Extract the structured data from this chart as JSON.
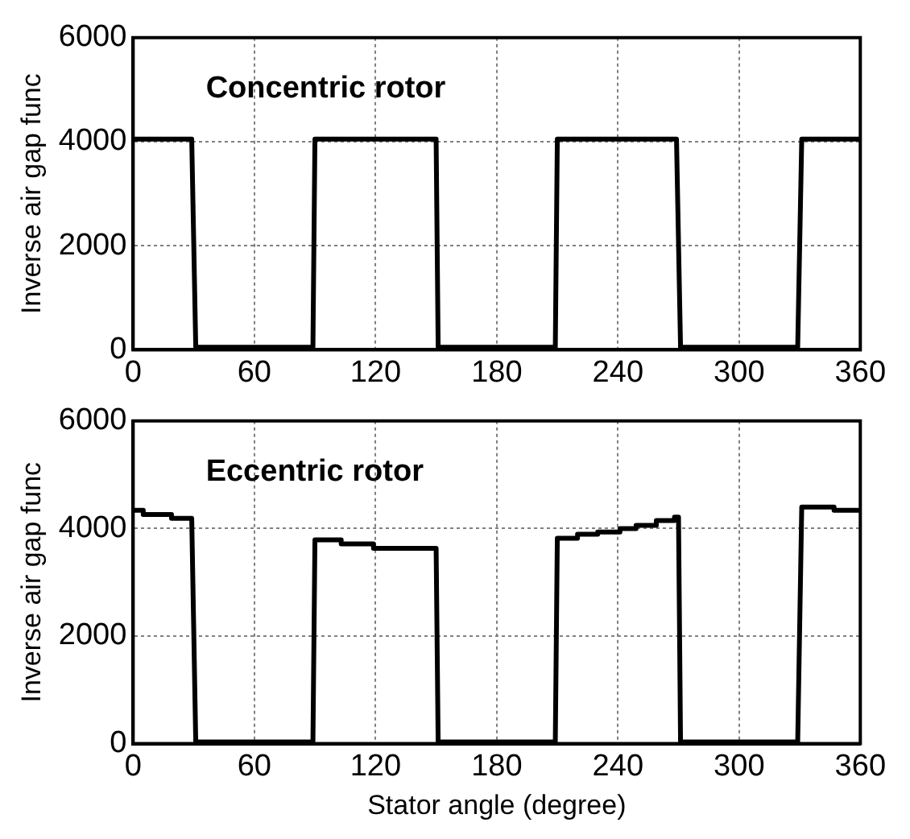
{
  "chart_data": [
    {
      "type": "line",
      "ylabel": "Inverse air gap func",
      "annotations": [
        "Concentric rotor"
      ],
      "series": [
        {
          "color": "#000000",
          "x": [
            0,
            29,
            31,
            89,
            90,
            150,
            151,
            209,
            210,
            269,
            271,
            329,
            331,
            360
          ],
          "values": [
            4050,
            4050,
            50,
            50,
            4050,
            4050,
            50,
            50,
            4050,
            4050,
            50,
            50,
            4050,
            4050
          ]
        }
      ],
      "xlim": [
        0,
        360
      ],
      "xticks": [
        0,
        60,
        120,
        180,
        240,
        300,
        360
      ],
      "ylim": [
        0,
        6000
      ],
      "yticks": [
        0,
        2000,
        4000,
        6000
      ],
      "grid": true,
      "marker": "none",
      "line_style": "solid",
      "legend": false
    },
    {
      "type": "line",
      "xlabel": "Stator angle (degree)",
      "ylabel": "Inverse air gap func",
      "annotations": [
        "Eccentric rotor"
      ],
      "series": [
        {
          "color": "#000000",
          "x": [
            0,
            5,
            5,
            19,
            19,
            29,
            31,
            89,
            90,
            103,
            103,
            119,
            119,
            150,
            151,
            209,
            210,
            220,
            220,
            230,
            230,
            241,
            241,
            249,
            249,
            259,
            259,
            268,
            268,
            270,
            271,
            329,
            331,
            347,
            347,
            360
          ],
          "values": [
            4340,
            4340,
            4260,
            4260,
            4190,
            4190,
            30,
            30,
            3790,
            3790,
            3715,
            3715,
            3630,
            3630,
            30,
            30,
            3820,
            3820,
            3895,
            3895,
            3935,
            3935,
            4000,
            4000,
            4060,
            4060,
            4150,
            4150,
            4210,
            4210,
            30,
            30,
            4400,
            4400,
            4340,
            4340
          ]
        }
      ],
      "xlim": [
        0,
        360
      ],
      "xticks": [
        0,
        60,
        120,
        180,
        240,
        300,
        360
      ],
      "ylim": [
        0,
        6000
      ],
      "yticks": [
        0,
        2000,
        4000,
        6000
      ],
      "grid": true,
      "marker": "none",
      "line_style": "solid",
      "legend": false
    }
  ]
}
